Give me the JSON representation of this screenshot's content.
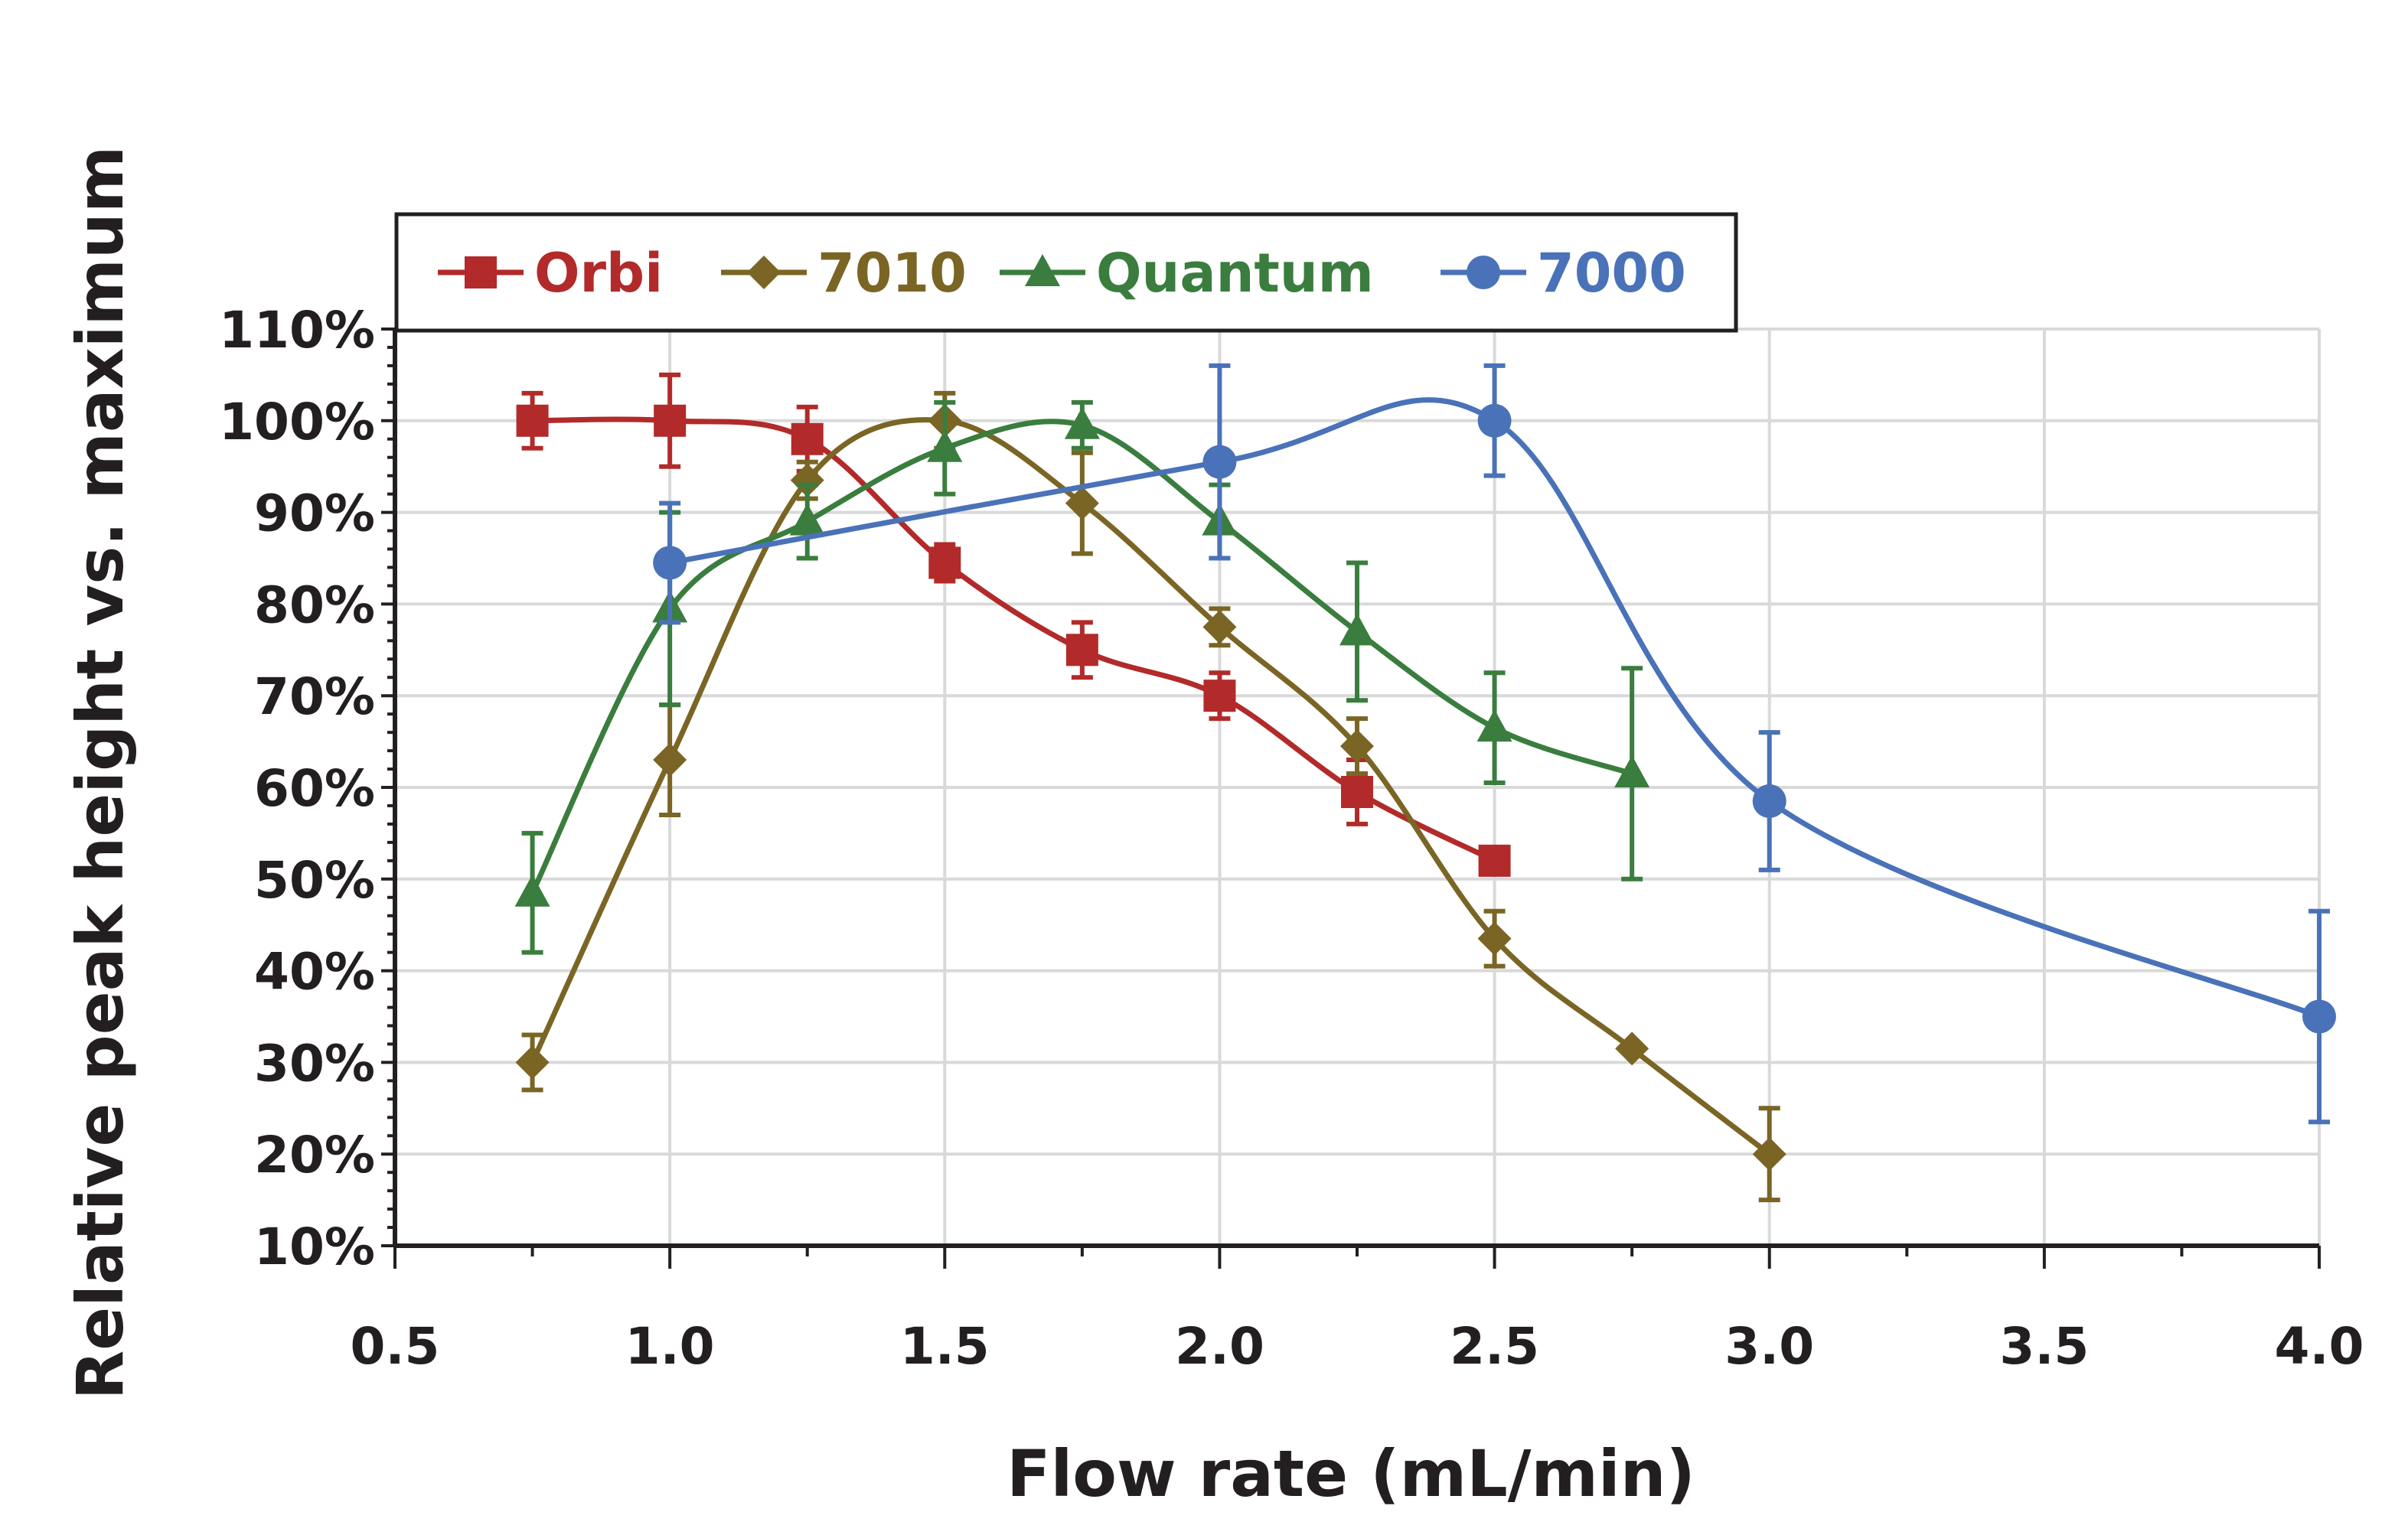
{
  "chart_data": {
    "type": "line",
    "title": "",
    "xlabel": "Flow rate (mL/min)",
    "ylabel": "Relative peak height vs. maximum",
    "xlim": [
      0.5,
      4.0
    ],
    "ylim": [
      10,
      110
    ],
    "xticks": [
      0.5,
      1.0,
      1.5,
      2.0,
      2.5,
      3.0,
      3.5,
      4.0
    ],
    "xtick_labels": [
      "0.5",
      "1.0",
      "1.5",
      "2.0",
      "2.5",
      "3.0",
      "3.5",
      "4.0"
    ],
    "yticks": [
      10,
      20,
      30,
      40,
      50,
      60,
      70,
      80,
      90,
      100,
      110
    ],
    "ytick_labels": [
      "10%",
      "20%",
      "30%",
      "40%",
      "50%",
      "60%",
      "70%",
      "80%",
      "90%",
      "100%",
      "110%"
    ],
    "grid": true,
    "legend_position": "top",
    "series": [
      {
        "name": "Orbi",
        "color": "#b22a2a",
        "marker": "square",
        "x": [
          0.75,
          1.0,
          1.25,
          1.5,
          1.75,
          2.0,
          2.25,
          2.5
        ],
        "y": [
          100,
          100,
          98,
          84.5,
          75,
          70,
          59.5,
          52
        ],
        "err": [
          3,
          5,
          3.5,
          2,
          3,
          2.5,
          3.5,
          0
        ]
      },
      {
        "name": "7010",
        "color": "#7a6525",
        "marker": "diamond",
        "x": [
          0.75,
          1.0,
          1.25,
          1.5,
          1.75,
          2.0,
          2.25,
          2.5,
          2.75,
          3.0
        ],
        "y": [
          30,
          63,
          93.5,
          100,
          91,
          77.5,
          64.5,
          43.5,
          31.5,
          20
        ],
        "err": [
          3,
          6,
          2,
          3,
          5.5,
          2,
          3,
          3,
          0,
          5
        ]
      },
      {
        "name": "Quantum",
        "color": "#3a7d3e",
        "marker": "triangle",
        "x": [
          0.75,
          1.0,
          1.25,
          1.5,
          1.75,
          2.0,
          2.25,
          2.5,
          2.75
        ],
        "y": [
          48.5,
          79.5,
          89,
          97,
          99.5,
          89,
          77,
          66.5,
          61.5
        ],
        "err": [
          6.5,
          10.5,
          4,
          5,
          2.5,
          4,
          7.5,
          6,
          11.5
        ]
      },
      {
        "name": "7000",
        "color": "#4a72b8",
        "marker": "circle",
        "x": [
          1.0,
          2.0,
          2.5,
          3.0,
          4.0
        ],
        "y": [
          84.5,
          95.5,
          100,
          58.5,
          35
        ],
        "err": [
          6.5,
          10.5,
          6,
          7.5,
          11.5
        ]
      }
    ]
  }
}
